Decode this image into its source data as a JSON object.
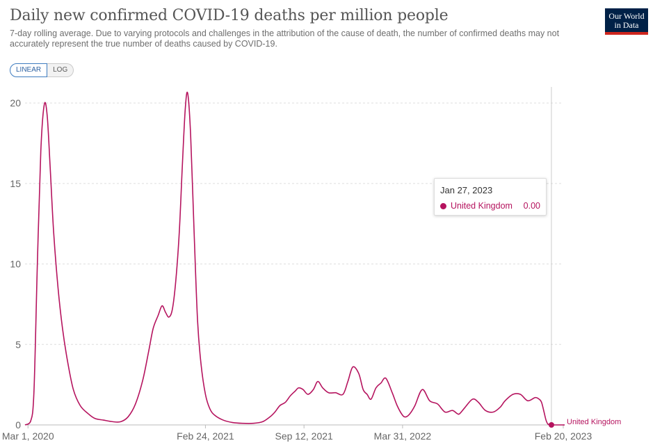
{
  "header": {
    "title": "Daily new confirmed COVID-19 deaths per million people",
    "subtitle": "7-day rolling average. Due to varying protocols and challenges in the attribution of the cause of death, the number of confirmed deaths may not accurately represent the true number of deaths caused by COVID-19.",
    "logo_line1": "Our World",
    "logo_line2": "in Data"
  },
  "scale_toggle": {
    "linear_label": "LINEAR",
    "log_label": "LOG",
    "selected": "LINEAR"
  },
  "tooltip": {
    "date": "Jan 27, 2023",
    "series": "United Kingdom",
    "value": "0.00"
  },
  "colors": {
    "series": "#b5135e",
    "grid": "#dddddd",
    "text": "#555555",
    "logo_bg": "#002147",
    "logo_bar": "#ce261e"
  },
  "chart_data": {
    "type": "line",
    "title": "Daily new confirmed COVID-19 deaths per million people",
    "xlabel": "",
    "ylabel": "",
    "x_ticks": [
      "Mar 1, 2020",
      "Feb 24, 2021",
      "Sep 12, 2021",
      "Mar 31, 2022",
      "Feb 20, 2023"
    ],
    "y_ticks": [
      "0",
      "5",
      "10",
      "15",
      "20"
    ],
    "ylim": [
      0,
      21
    ],
    "xlim": [
      "2020-02-24",
      "2023-02-20"
    ],
    "grid": "horizontal",
    "hover_date": "2023-01-27",
    "series": [
      {
        "name": "United Kingdom",
        "end_label": "United Kingdom",
        "x": [
          "2020-02-24",
          "2020-03-06",
          "2020-03-13",
          "2020-03-20",
          "2020-03-27",
          "2020-04-03",
          "2020-04-09",
          "2020-04-15",
          "2020-04-22",
          "2020-05-01",
          "2020-05-10",
          "2020-05-20",
          "2020-06-01",
          "2020-06-15",
          "2020-07-01",
          "2020-07-15",
          "2020-08-01",
          "2020-08-20",
          "2020-09-05",
          "2020-09-20",
          "2020-10-05",
          "2020-10-20",
          "2020-11-01",
          "2020-11-10",
          "2020-11-20",
          "2020-11-28",
          "2020-12-05",
          "2020-12-12",
          "2020-12-19",
          "2020-12-26",
          "2021-01-02",
          "2021-01-08",
          "2021-01-14",
          "2021-01-19",
          "2021-01-25",
          "2021-02-01",
          "2021-02-08",
          "2021-02-15",
          "2021-02-24",
          "2021-03-05",
          "2021-03-15",
          "2021-04-01",
          "2021-04-20",
          "2021-05-10",
          "2021-06-01",
          "2021-06-20",
          "2021-07-05",
          "2021-07-15",
          "2021-07-25",
          "2021-08-05",
          "2021-08-15",
          "2021-08-25",
          "2021-09-01",
          "2021-09-10",
          "2021-09-20",
          "2021-10-01",
          "2021-10-10",
          "2021-10-20",
          "2021-11-01",
          "2021-11-15",
          "2021-11-30",
          "2021-12-10",
          "2021-12-20",
          "2022-01-01",
          "2022-01-10",
          "2022-01-18",
          "2022-01-26",
          "2022-02-05",
          "2022-02-15",
          "2022-02-25",
          "2022-03-10",
          "2022-03-20",
          "2022-03-31",
          "2022-04-07",
          "2022-04-15",
          "2022-04-25",
          "2022-05-10",
          "2022-05-25",
          "2022-06-10",
          "2022-06-25",
          "2022-07-10",
          "2022-07-20",
          "2022-07-25",
          "2022-08-05",
          "2022-08-20",
          "2022-09-01",
          "2022-09-15",
          "2022-10-01",
          "2022-10-15",
          "2022-10-25",
          "2022-11-10",
          "2022-11-25",
          "2022-12-10",
          "2022-12-25",
          "2023-01-02",
          "2023-01-07",
          "2023-01-12",
          "2023-01-16",
          "2023-01-20",
          "2023-01-27",
          "2023-02-05",
          "2023-02-20"
        ],
        "values": [
          0,
          0.2,
          2,
          10,
          17,
          19.9,
          19.2,
          16,
          12,
          8.5,
          6,
          4,
          2.2,
          1.2,
          0.7,
          0.4,
          0.3,
          0.2,
          0.2,
          0.5,
          1.3,
          2.8,
          4.6,
          6,
          6.8,
          7.4,
          7,
          6.7,
          7.2,
          9,
          12,
          16,
          19.6,
          20.6,
          18,
          12,
          6.5,
          3.8,
          1.9,
          1,
          0.6,
          0.3,
          0.15,
          0.1,
          0.1,
          0.2,
          0.5,
          0.8,
          1.2,
          1.4,
          1.8,
          2.1,
          2.3,
          2.2,
          1.9,
          2.2,
          2.7,
          2.3,
          2,
          2,
          1.9,
          2.7,
          3.6,
          3.2,
          2.2,
          1.9,
          1.6,
          2.3,
          2.6,
          2.9,
          2,
          1.2,
          0.6,
          0.5,
          0.7,
          1.2,
          2.2,
          1.5,
          1.3,
          0.8,
          0.9,
          0.7,
          0.7,
          1.1,
          1.6,
          1.4,
          0.9,
          0.8,
          1.1,
          1.5,
          1.9,
          1.9,
          1.5,
          1.7,
          1.6,
          1.4,
          0.8,
          0.3,
          0.05,
          0,
          0,
          0
        ]
      }
    ]
  }
}
